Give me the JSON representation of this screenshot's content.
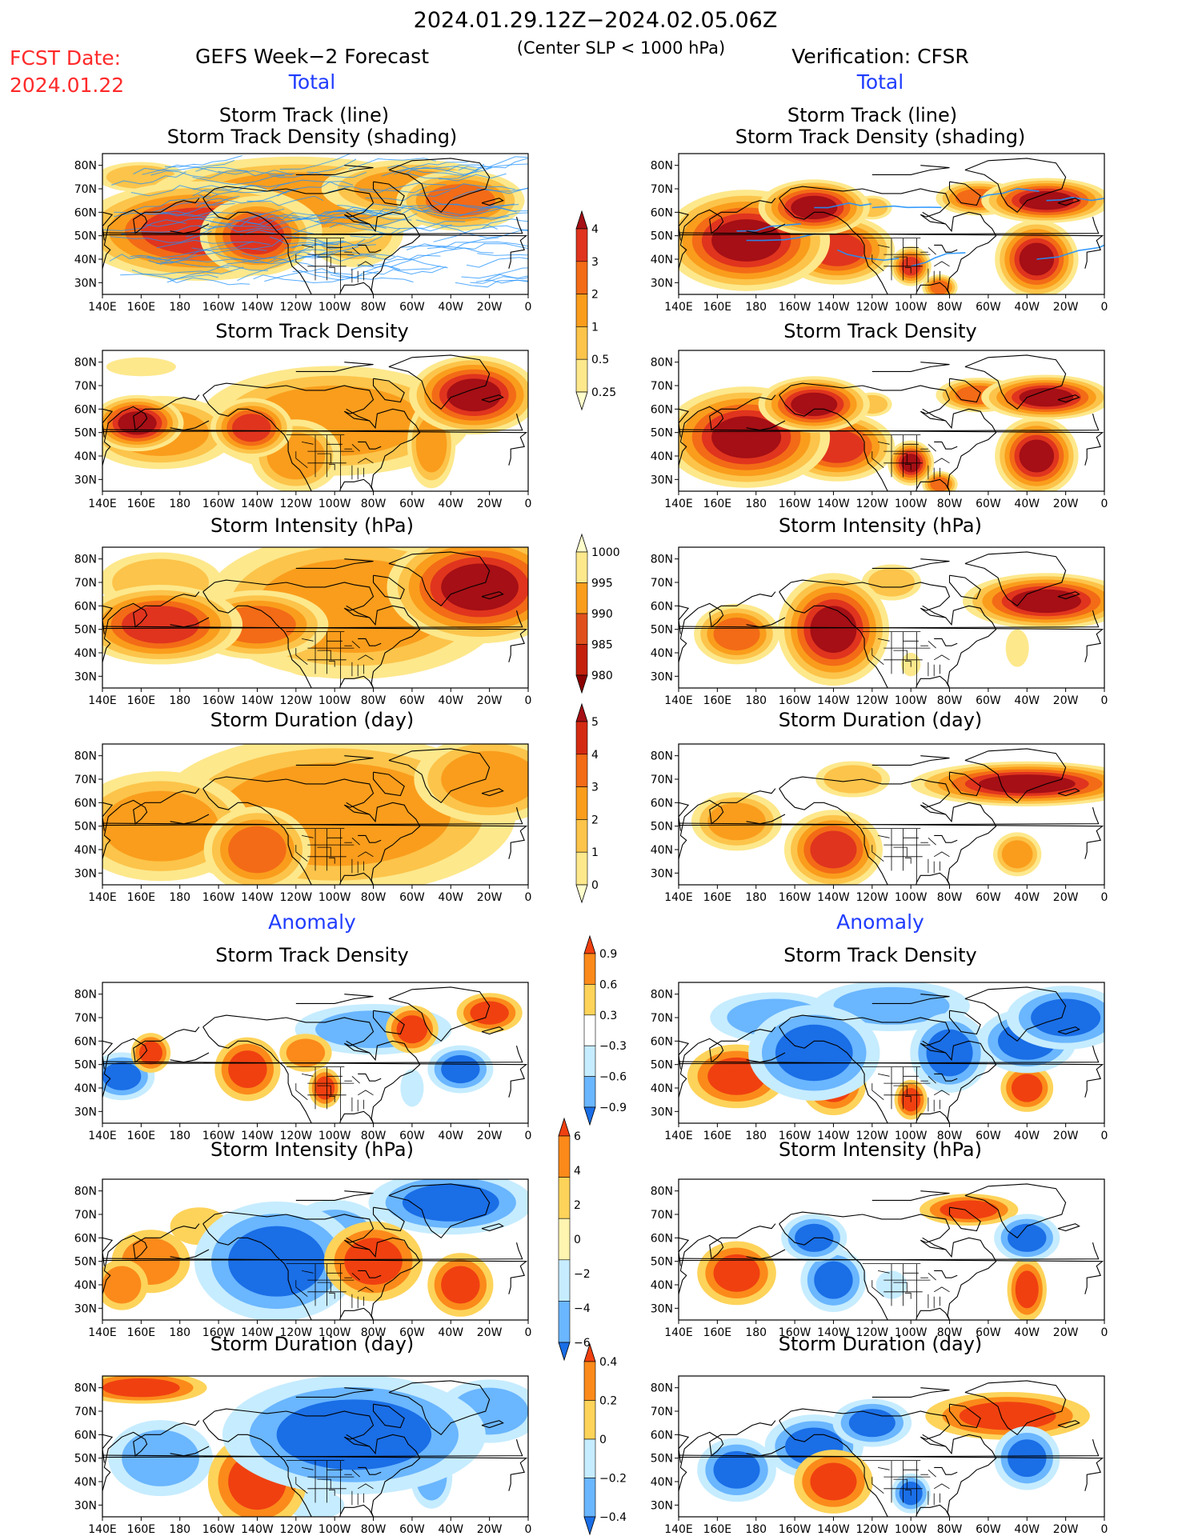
{
  "header": {
    "date_range": "2024.01.29.12Z−2024.02.05.06Z",
    "criterion": "(Center SLP < 1000 hPa)",
    "fcst_label": "FCST Date:",
    "fcst_date": "2024.01.22",
    "left_model": "GEFS Week−2 Forecast",
    "right_model": "Verification: CFSR",
    "total_left": "Total",
    "total_right": "Total",
    "anomaly_left": "Anomaly",
    "anomaly_right": "Anomaly"
  },
  "panel_titles": {
    "track_line": "Storm Track (line)",
    "track_shading": "Storm Track Density (shading)",
    "density": "Storm Track Density",
    "intensity": "Storm Intensity (hPa)",
    "duration": "Storm Duration (day)"
  },
  "axes": {
    "lon_ticks": [
      "140E",
      "160E",
      "180",
      "160W",
      "140W",
      "120W",
      "100W",
      "80W",
      "60W",
      "40W",
      "20W",
      "0"
    ],
    "lat_ticks": [
      "80N",
      "70N",
      "60N",
      "50N",
      "40N",
      "30N"
    ]
  },
  "colorbars": {
    "density_total": {
      "labels": [
        "4",
        "3",
        "2",
        "1",
        "0.5",
        "0.25"
      ],
      "colors": [
        "#a50f15",
        "#e0341e",
        "#f36b16",
        "#fa9d1c",
        "#fcc44a",
        "#fde88c",
        "#ffffcc"
      ]
    },
    "intensity_total": {
      "labels": [
        "1000",
        "995",
        "990",
        "985",
        "980"
      ],
      "colors": [
        "#ffffcc",
        "#fde88c",
        "#fa9d1c",
        "#e0501c",
        "#c4200c",
        "#8b0000"
      ]
    },
    "duration_total": {
      "labels": [
        "5",
        "4",
        "3",
        "2",
        "1",
        "0"
      ],
      "colors": [
        "#a50f15",
        "#d42a12",
        "#f36b16",
        "#fa9d1c",
        "#fcc44a",
        "#fde88c",
        "#ffffcc"
      ]
    },
    "density_anom": {
      "labels": [
        "0.9",
        "0.6",
        "0.3",
        "−0.3",
        "−0.6",
        "−0.9"
      ],
      "colors": [
        "#f04010",
        "#fb8a1a",
        "#fdd35a",
        "#ffffff",
        "#c6ecff",
        "#6ab6ff",
        "#1a6ee6"
      ]
    },
    "intensity_anom": {
      "labels": [
        "6",
        "4",
        "2",
        "0",
        "−2",
        "−4",
        "−6"
      ],
      "colors": [
        "#f04010",
        "#fb8a1a",
        "#fdd35a",
        "#fff4b0",
        "#c6ecff",
        "#6ab6ff",
        "#1a6ee6"
      ]
    },
    "duration_anom": {
      "labels": [
        "0.4",
        "0.2",
        "0",
        "−0.2",
        "−0.4"
      ],
      "colors": [
        "#f04010",
        "#fb8a1a",
        "#fdd35a",
        "#c6ecff",
        "#6ab6ff",
        "#1a6ee6"
      ]
    }
  },
  "palettes": {
    "seq": [
      "#ffffcc",
      "#fde88c",
      "#fcc44a",
      "#fa9d1c",
      "#f36b16",
      "#e0341e",
      "#a50f15"
    ],
    "div": [
      "#1a6ee6",
      "#6ab6ff",
      "#c6ecff",
      "#ffffff",
      "#fdd35a",
      "#fb8a1a",
      "#f04010"
    ],
    "track_line_color": "#1e90ff"
  },
  "panels": [
    {
      "id": "fc-track",
      "blobs": [
        [
          -170,
          52,
          30,
          10,
          5
        ],
        [
          -140,
          50,
          14,
          8,
          5
        ],
        [
          170,
          52,
          12,
          8,
          4
        ],
        [
          -35,
          65,
          18,
          7,
          4
        ],
        [
          -120,
          65,
          50,
          12,
          3
        ],
        [
          -90,
          52,
          20,
          12,
          2
        ],
        [
          -60,
          70,
          30,
          8,
          3
        ],
        [
          160,
          75,
          18,
          5,
          2
        ]
      ]
    },
    {
      "id": "obs-track",
      "blobs": [
        [
          175,
          48,
          18,
          9,
          6
        ],
        [
          -150,
          62,
          12,
          5,
          6
        ],
        [
          -138,
          44,
          14,
          7,
          5
        ],
        [
          -100,
          37,
          5,
          4,
          5
        ],
        [
          -85,
          28,
          5,
          3,
          4
        ],
        [
          -35,
          40,
          9,
          7,
          6
        ],
        [
          -30,
          65,
          14,
          4,
          6
        ],
        [
          -65,
          66,
          12,
          4,
          4
        ],
        [
          -120,
          62,
          8,
          4,
          2
        ]
      ]
    },
    {
      "id": "fc-density",
      "blobs": [
        [
          158,
          54,
          10,
          5,
          6
        ],
        [
          -143,
          52,
          10,
          6,
          5
        ],
        [
          -28,
          66,
          14,
          7,
          6
        ],
        [
          -100,
          55,
          45,
          15,
          3
        ],
        [
          170,
          50,
          25,
          10,
          3
        ],
        [
          -120,
          40,
          15,
          10,
          3
        ],
        [
          -50,
          45,
          8,
          12,
          3
        ],
        [
          160,
          78,
          18,
          4,
          1
        ]
      ]
    },
    {
      "id": "obs-density",
      "blobs": [
        [
          175,
          48,
          18,
          9,
          6
        ],
        [
          -150,
          62,
          12,
          5,
          6
        ],
        [
          -138,
          44,
          14,
          7,
          5
        ],
        [
          -100,
          37,
          5,
          4,
          6
        ],
        [
          -85,
          28,
          5,
          3,
          4
        ],
        [
          -35,
          40,
          9,
          7,
          6
        ],
        [
          -30,
          65,
          14,
          4,
          6
        ],
        [
          -65,
          66,
          12,
          4,
          4
        ],
        [
          -120,
          62,
          8,
          4,
          2
        ]
      ]
    },
    {
      "id": "fc-intensity",
      "blobs": [
        [
          170,
          52,
          20,
          8,
          5
        ],
        [
          -140,
          52,
          20,
          8,
          4
        ],
        [
          -25,
          68,
          20,
          10,
          6
        ],
        [
          -90,
          60,
          50,
          20,
          3
        ],
        [
          -110,
          45,
          20,
          12,
          2
        ],
        [
          170,
          70,
          25,
          10,
          2
        ]
      ]
    },
    {
      "id": "obs-intensity",
      "blobs": [
        [
          170,
          48,
          12,
          7,
          4
        ],
        [
          -140,
          50,
          12,
          10,
          6
        ],
        [
          -30,
          62,
          18,
          5,
          6
        ],
        [
          -100,
          35,
          5,
          5,
          1
        ],
        [
          -45,
          42,
          6,
          8,
          1
        ],
        [
          -110,
          70,
          12,
          6,
          2
        ]
      ]
    },
    {
      "id": "fc-duration",
      "blobs": [
        [
          -100,
          55,
          60,
          22,
          3
        ],
        [
          170,
          50,
          30,
          15,
          3
        ],
        [
          -20,
          70,
          25,
          12,
          3
        ],
        [
          -140,
          40,
          15,
          10,
          4
        ],
        [
          150,
          45,
          12,
          8,
          2
        ]
      ]
    },
    {
      "id": "obs-duration",
      "blobs": [
        [
          -40,
          68,
          25,
          4,
          6
        ],
        [
          -140,
          40,
          12,
          8,
          5
        ],
        [
          170,
          52,
          15,
          8,
          3
        ],
        [
          -45,
          38,
          8,
          6,
          3
        ],
        [
          -130,
          70,
          15,
          6,
          2
        ]
      ]
    },
    {
      "id": "fc-density-anom",
      "blobs": [
        [
          -145,
          48,
          10,
          8,
          6
        ],
        [
          -105,
          40,
          5,
          5,
          6
        ],
        [
          -80,
          65,
          30,
          8,
          1
        ],
        [
          -60,
          65,
          8,
          6,
          6
        ],
        [
          -35,
          48,
          10,
          6,
          0
        ],
        [
          150,
          45,
          10,
          6,
          0
        ],
        [
          -60,
          40,
          6,
          8,
          2
        ],
        [
          -20,
          72,
          10,
          5,
          6
        ],
        [
          165,
          55,
          6,
          5,
          6
        ],
        [
          -115,
          55,
          10,
          6,
          5
        ]
      ]
    },
    {
      "id": "obs-density-anom",
      "blobs": [
        [
          170,
          45,
          15,
          8,
          6
        ],
        [
          -140,
          42,
          10,
          8,
          6
        ],
        [
          -100,
          35,
          5,
          5,
          6
        ],
        [
          -40,
          40,
          8,
          6,
          6
        ],
        [
          -40,
          60,
          15,
          8,
          0
        ],
        [
          -80,
          55,
          12,
          10,
          0
        ],
        [
          -150,
          55,
          20,
          12,
          0
        ],
        [
          -20,
          70,
          18,
          8,
          0
        ],
        [
          -110,
          75,
          30,
          8,
          1
        ],
        [
          -170,
          70,
          25,
          8,
          1
        ]
      ]
    },
    {
      "id": "fc-intensity-anom",
      "blobs": [
        [
          -130,
          50,
          25,
          15,
          0
        ],
        [
          -40,
          75,
          25,
          8,
          0
        ],
        [
          -80,
          50,
          15,
          10,
          6
        ],
        [
          -35,
          40,
          10,
          8,
          6
        ],
        [
          165,
          50,
          15,
          10,
          5
        ],
        [
          -170,
          65,
          15,
          8,
          4
        ],
        [
          -100,
          60,
          20,
          12,
          1
        ],
        [
          150,
          40,
          10,
          8,
          5
        ]
      ]
    },
    {
      "id": "obs-intensity-anom",
      "blobs": [
        [
          170,
          45,
          12,
          8,
          6
        ],
        [
          -140,
          42,
          10,
          8,
          0
        ],
        [
          -40,
          38,
          6,
          8,
          6
        ],
        [
          -70,
          72,
          15,
          4,
          6
        ],
        [
          -150,
          60,
          10,
          6,
          0
        ],
        [
          -40,
          60,
          10,
          6,
          0
        ],
        [
          -110,
          40,
          8,
          6,
          2
        ]
      ]
    },
    {
      "id": "fc-duration-anom",
      "blobs": [
        [
          -140,
          40,
          15,
          12,
          6
        ],
        [
          -90,
          60,
          40,
          15,
          0
        ],
        [
          -20,
          70,
          20,
          10,
          1
        ],
        [
          170,
          50,
          20,
          12,
          1
        ],
        [
          160,
          80,
          20,
          4,
          6
        ],
        [
          -110,
          30,
          15,
          6,
          2
        ],
        [
          -50,
          42,
          8,
          10,
          1
        ]
      ]
    },
    {
      "id": "obs-duration-anom",
      "blobs": [
        [
          -50,
          68,
          25,
          6,
          6
        ],
        [
          -150,
          55,
          15,
          8,
          0
        ],
        [
          -40,
          50,
          10,
          8,
          0
        ],
        [
          -140,
          40,
          12,
          8,
          6
        ],
        [
          170,
          45,
          12,
          8,
          0
        ],
        [
          -100,
          35,
          6,
          5,
          0
        ],
        [
          -120,
          65,
          12,
          6,
          0
        ]
      ]
    }
  ]
}
